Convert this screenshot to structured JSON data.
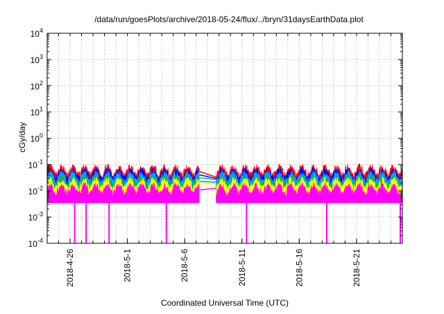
{
  "chart_data": {
    "type": "area",
    "title": "/data/run/goesPlots/archive/2018-05-24/flux/../bryn/31daysEarthData.plot",
    "xlabel": "Coordinated Universal Time (UTC)",
    "ylabel": "cGy/day",
    "yscale": "log",
    "ylim": [
      0.0001,
      10000
    ],
    "xlim": [
      "2018-04-24",
      "2018-05-25"
    ],
    "grid": true,
    "legend": "none",
    "x_tick_labels": [
      "2018-4-26",
      "2018-5-1",
      "2018-5-6",
      "2018-5-11",
      "2018-5-16",
      "2018-5-21"
    ],
    "y_tick_labels": [
      {
        "base": "10",
        "exp": "-4"
      },
      {
        "base": "10",
        "exp": "-3"
      },
      {
        "base": "10",
        "exp": "-2"
      },
      {
        "base": "10",
        "exp": "-1"
      },
      {
        "base": "10",
        "exp": "0"
      },
      {
        "base": "10",
        "exp": "1"
      },
      {
        "base": "10",
        "exp": "2"
      },
      {
        "base": "10",
        "exp": "3"
      },
      {
        "base": "10",
        "exp": "4"
      }
    ],
    "data_gap": [
      "2018-05-07",
      "2018-05-08"
    ],
    "series": [
      {
        "color": "#ff0000",
        "level": 0.06
      },
      {
        "color": "#0000ff",
        "level": 0.045
      },
      {
        "color": "#00aaff",
        "level": 0.035
      },
      {
        "color": "#00b050",
        "level": 0.025
      },
      {
        "color": "#ffff00",
        "level": 0.02
      },
      {
        "color": "#ff00ff",
        "level": 0.012
      }
    ],
    "dropouts": [
      "2018-04-26",
      "2018-04-27",
      "2018-04-29",
      "2018-05-04",
      "2018-05-11",
      "2018-05-18",
      "2018-05-25"
    ]
  }
}
